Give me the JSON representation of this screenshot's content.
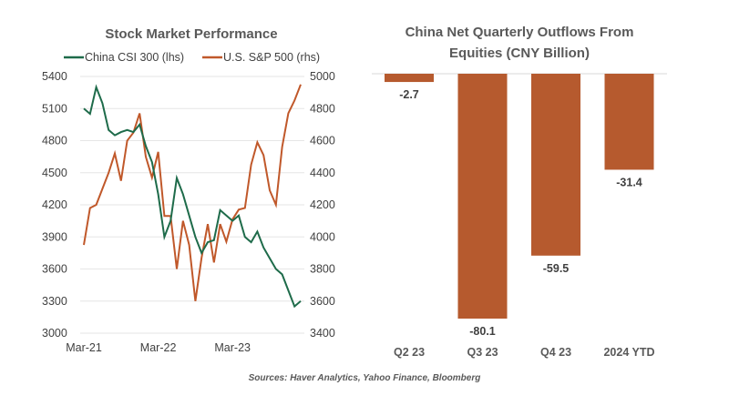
{
  "chart_data": [
    {
      "type": "line",
      "title": "Stock Market Performance",
      "x_tick_labels": [
        "Mar-21",
        "Mar-22",
        "Mar-23"
      ],
      "x": [
        "2021-03",
        "2021-04",
        "2021-05",
        "2021-06",
        "2021-07",
        "2021-08",
        "2021-09",
        "2021-10",
        "2021-11",
        "2021-12",
        "2022-01",
        "2022-02",
        "2022-03",
        "2022-04",
        "2022-05",
        "2022-06",
        "2022-07",
        "2022-08",
        "2022-09",
        "2022-10",
        "2022-11",
        "2022-12",
        "2023-01",
        "2023-02",
        "2023-03",
        "2023-04",
        "2023-05",
        "2023-06",
        "2023-07",
        "2023-08",
        "2023-09",
        "2023-10",
        "2023-11",
        "2023-12",
        "2024-01",
        "2024-02"
      ],
      "y_left": {
        "ylim": [
          3000,
          5400
        ],
        "ticks": [
          "3000",
          "3300",
          "3600",
          "3900",
          "4200",
          "4500",
          "4800",
          "5100",
          "5400"
        ]
      },
      "y_right": {
        "ylim": [
          3400,
          5000
        ],
        "ticks": [
          "3400",
          "3600",
          "3800",
          "4000",
          "4200",
          "4400",
          "4600",
          "4800",
          "5000"
        ]
      },
      "grid": true,
      "legend": "top",
      "series": [
        {
          "name": "China CSI 300 (lhs)",
          "axis": "left",
          "color": "#1e6b4a",
          "values": [
            5100,
            5050,
            5300,
            5150,
            4900,
            4850,
            4880,
            4900,
            4880,
            4950,
            4750,
            4600,
            4300,
            3900,
            4050,
            4450,
            4300,
            4100,
            3900,
            3750,
            3850,
            3870,
            4150,
            4100,
            4050,
            4100,
            3900,
            3850,
            3950,
            3800,
            3700,
            3600,
            3550,
            3400,
            3250,
            3300
          ]
        },
        {
          "name": "U.S. S&P 500 (rhs)",
          "axis": "right",
          "color": "#c0582a",
          "values": [
            3950,
            4180,
            4200,
            4300,
            4400,
            4520,
            4350,
            4600,
            4650,
            4770,
            4500,
            4370,
            4530,
            4130,
            4130,
            3800,
            4100,
            3950,
            3600,
            3870,
            4080,
            3840,
            4080,
            3970,
            4110,
            4170,
            4180,
            4450,
            4590,
            4510,
            4290,
            4200,
            4560,
            4770,
            4850,
            4950
          ]
        }
      ]
    },
    {
      "type": "bar",
      "title": "China Net Quarterly Outflows From Equities (CNY Billion)",
      "title_lines": [
        "China Net Quarterly Outflows From",
        "Equities (CNY Billion)"
      ],
      "categories": [
        "Q2 23",
        "Q3 23",
        "Q4 23",
        "2024 YTD"
      ],
      "values": [
        -2.7,
        -80.1,
        -59.5,
        -31.4
      ],
      "data_labels": [
        "-2.7",
        "-80.1",
        "-59.5",
        "-31.4"
      ],
      "color": "#b65a2e",
      "ylim": [
        -80.1,
        0
      ]
    }
  ],
  "source": "Sources: Haver Analytics, Yahoo Finance, Bloomberg"
}
